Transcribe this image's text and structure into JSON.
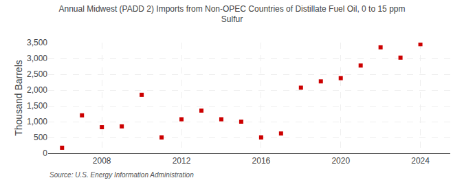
{
  "chart_data": {
    "type": "scatter",
    "title": "Annual Midwest (PADD 2) Imports from Non-OPEC Countries of Distillate Fuel Oil, 0 to 15 ppm\nSulfur",
    "ylabel": "Thousand Barrels",
    "annotations": [
      "Source: U.S. Energy Information Administration"
    ],
    "x": [
      2006,
      2007,
      2008,
      2009,
      2010,
      2011,
      2012,
      2013,
      2014,
      2015,
      2016,
      2017,
      2018,
      2019,
      2020,
      2021,
      2022,
      2023,
      2024
    ],
    "values": [
      175,
      1200,
      825,
      850,
      1850,
      500,
      1075,
      1350,
      1075,
      1000,
      500,
      625,
      2075,
      2275,
      2375,
      2775,
      3350,
      3025,
      3450
    ],
    "color": "#cc0000",
    "marker": "square",
    "xlim": [
      2005.3,
      2025.5
    ],
    "xticks": [
      2008,
      2012,
      2016,
      2020,
      2024
    ],
    "ylim": [
      0,
      3500
    ],
    "yticks": [
      0,
      500,
      {
        "value": 1000,
        "label": "1,000"
      },
      {
        "value": 1500,
        "label": "1,500"
      },
      {
        "value": 2000,
        "label": "2,000"
      },
      {
        "value": 2500,
        "label": "2,500"
      },
      {
        "value": 3000,
        "label": "3,000"
      },
      {
        "value": 3500,
        "label": "3,500"
      }
    ],
    "grid": true
  }
}
